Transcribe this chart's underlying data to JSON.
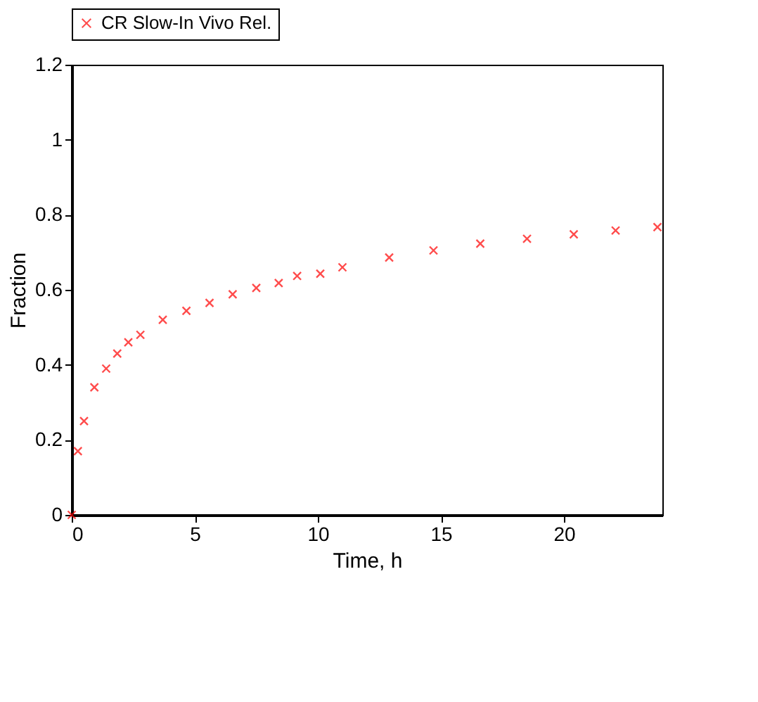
{
  "chart_data": {
    "type": "scatter",
    "xlabel": "Time, h",
    "ylabel": "Fraction",
    "x": [
      0,
      0.25,
      0.5,
      0.92,
      1.4,
      1.85,
      2.3,
      2.79,
      3.7,
      4.66,
      5.6,
      6.54,
      7.5,
      8.41,
      9.16,
      10.1,
      11,
      12.9,
      14.7,
      16.6,
      18.5,
      20.4,
      22.1,
      23.8
    ],
    "series": [
      {
        "name": "CR Slow-In Vivo Rel.",
        "color": "#ff0000",
        "values": [
          0,
          0.17,
          0.25,
          0.34,
          0.39,
          0.43,
          0.46,
          0.48,
          0.52,
          0.544,
          0.565,
          0.588,
          0.605,
          0.618,
          0.637,
          0.643,
          0.66,
          0.686,
          0.705,
          0.723,
          0.736,
          0.748,
          0.758,
          0.767
        ]
      }
    ],
    "xlim": [
      0,
      24
    ],
    "ylim": [
      0,
      1.2
    ],
    "xticks": [
      0,
      5,
      10,
      15,
      20
    ],
    "yticks": [
      0,
      0.2,
      0.4,
      0.6,
      0.8,
      1,
      1.2
    ],
    "marker": "cross",
    "legend": "top",
    "grid": false
  }
}
